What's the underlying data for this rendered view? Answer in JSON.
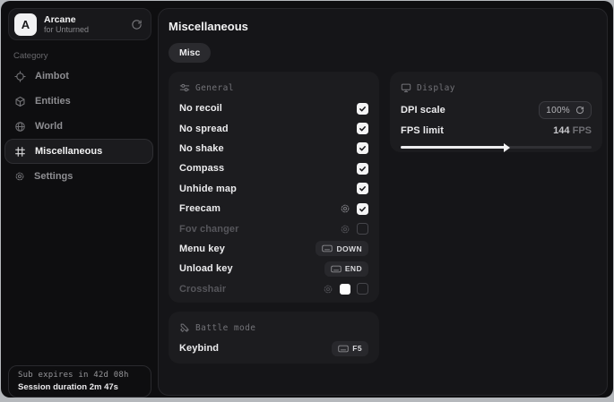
{
  "accent_colors": {
    "card_bg": "#1c1c1f",
    "panel_bg": "#151518",
    "window_bg": "#0e0e10",
    "checkbox_checked": "#f4f4f5"
  },
  "icons": [
    "sync-icon",
    "crosshair-icon",
    "entities-icon",
    "globe-icon",
    "grid-icon",
    "gear-icon",
    "sliders-icon",
    "sword-icon",
    "monitor-icon",
    "keyboard-icon",
    "refresh-icon",
    "check-icon"
  ],
  "sidebar": {
    "app": {
      "avatar_letter": "A",
      "name": "Arcane",
      "subtitle": "for Unturned"
    },
    "category_label": "Category",
    "items": [
      {
        "label": "Aimbot",
        "icon": "crosshair-icon",
        "active": false
      },
      {
        "label": "Entities",
        "icon": "entities-icon",
        "active": false
      },
      {
        "label": "World",
        "icon": "globe-icon",
        "active": false
      },
      {
        "label": "Miscellaneous",
        "icon": "grid-icon",
        "active": true
      },
      {
        "label": "Settings",
        "icon": "gear-icon",
        "active": false
      }
    ],
    "footer": {
      "line1": "Sub expires in 42d 08h",
      "line2": "Session duration 2m 47s"
    }
  },
  "main": {
    "title": "Miscellaneous",
    "tabs": [
      {
        "label": "Misc",
        "active": true
      }
    ],
    "sections": {
      "general": {
        "title": "General",
        "icon": "sliders-icon",
        "rows": [
          {
            "label": "No recoil",
            "type": "checkbox",
            "checked": true
          },
          {
            "label": "No spread",
            "type": "checkbox",
            "checked": true
          },
          {
            "label": "No shake",
            "type": "checkbox",
            "checked": true
          },
          {
            "label": "Compass",
            "type": "checkbox",
            "checked": true
          },
          {
            "label": "Unhide map",
            "type": "checkbox",
            "checked": true
          },
          {
            "label": "Freecam",
            "type": "checkbox",
            "checked": true,
            "gear": true
          },
          {
            "label": "Fov changer",
            "type": "checkbox",
            "checked": false,
            "gear": true,
            "dimmed": true
          },
          {
            "label": "Menu key",
            "type": "keybind",
            "key": "DOWN"
          },
          {
            "label": "Unload key",
            "type": "keybind",
            "key": "END"
          },
          {
            "label": "Crosshair",
            "type": "color-checkbox",
            "checked": false,
            "gear": true,
            "dimmed": true,
            "swatch": "#ffffff"
          }
        ]
      },
      "battle_mode": {
        "title": "Battle mode",
        "icon": "sword-icon",
        "rows": [
          {
            "label": "Keybind",
            "type": "keybind",
            "key": "F5"
          }
        ]
      },
      "display": {
        "title": "Display",
        "icon": "monitor-icon",
        "dpi": {
          "label": "DPI scale",
          "value": "100%"
        },
        "fps": {
          "label": "FPS limit",
          "value": "144",
          "unit": "FPS",
          "percent": 55
        }
      }
    }
  }
}
